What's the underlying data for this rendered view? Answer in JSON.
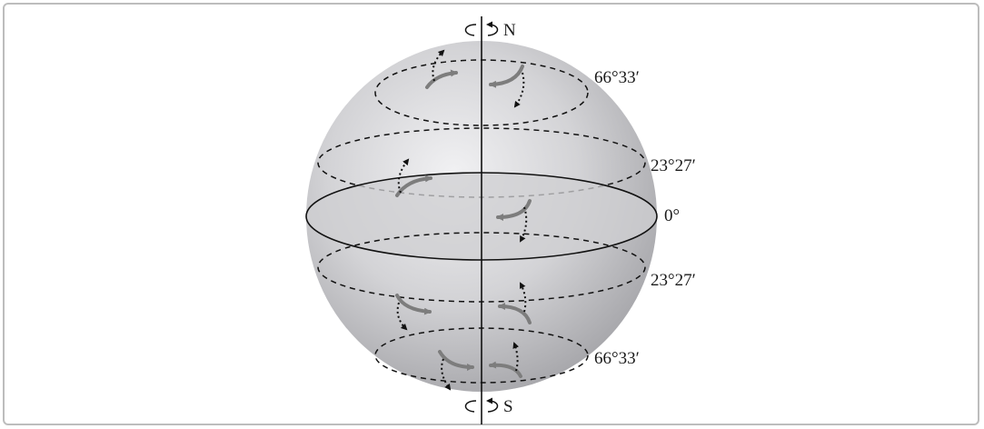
{
  "figure": {
    "poles": {
      "north": "N",
      "south": "S"
    },
    "latitude_labels": {
      "arctic_circle": "66°33′",
      "tropic_of_cancer": "23°27′",
      "equator": "0°",
      "tropic_of_capricorn": "23°27′",
      "antarctic_circle": "66°33′"
    },
    "colors": {
      "sphere_light": "#f1f1f3",
      "sphere_dark": "#a7a7ab",
      "equator_fill": "#cfcfd1",
      "wind_arrow": "#7d7d7d",
      "line": "#111111"
    }
  }
}
